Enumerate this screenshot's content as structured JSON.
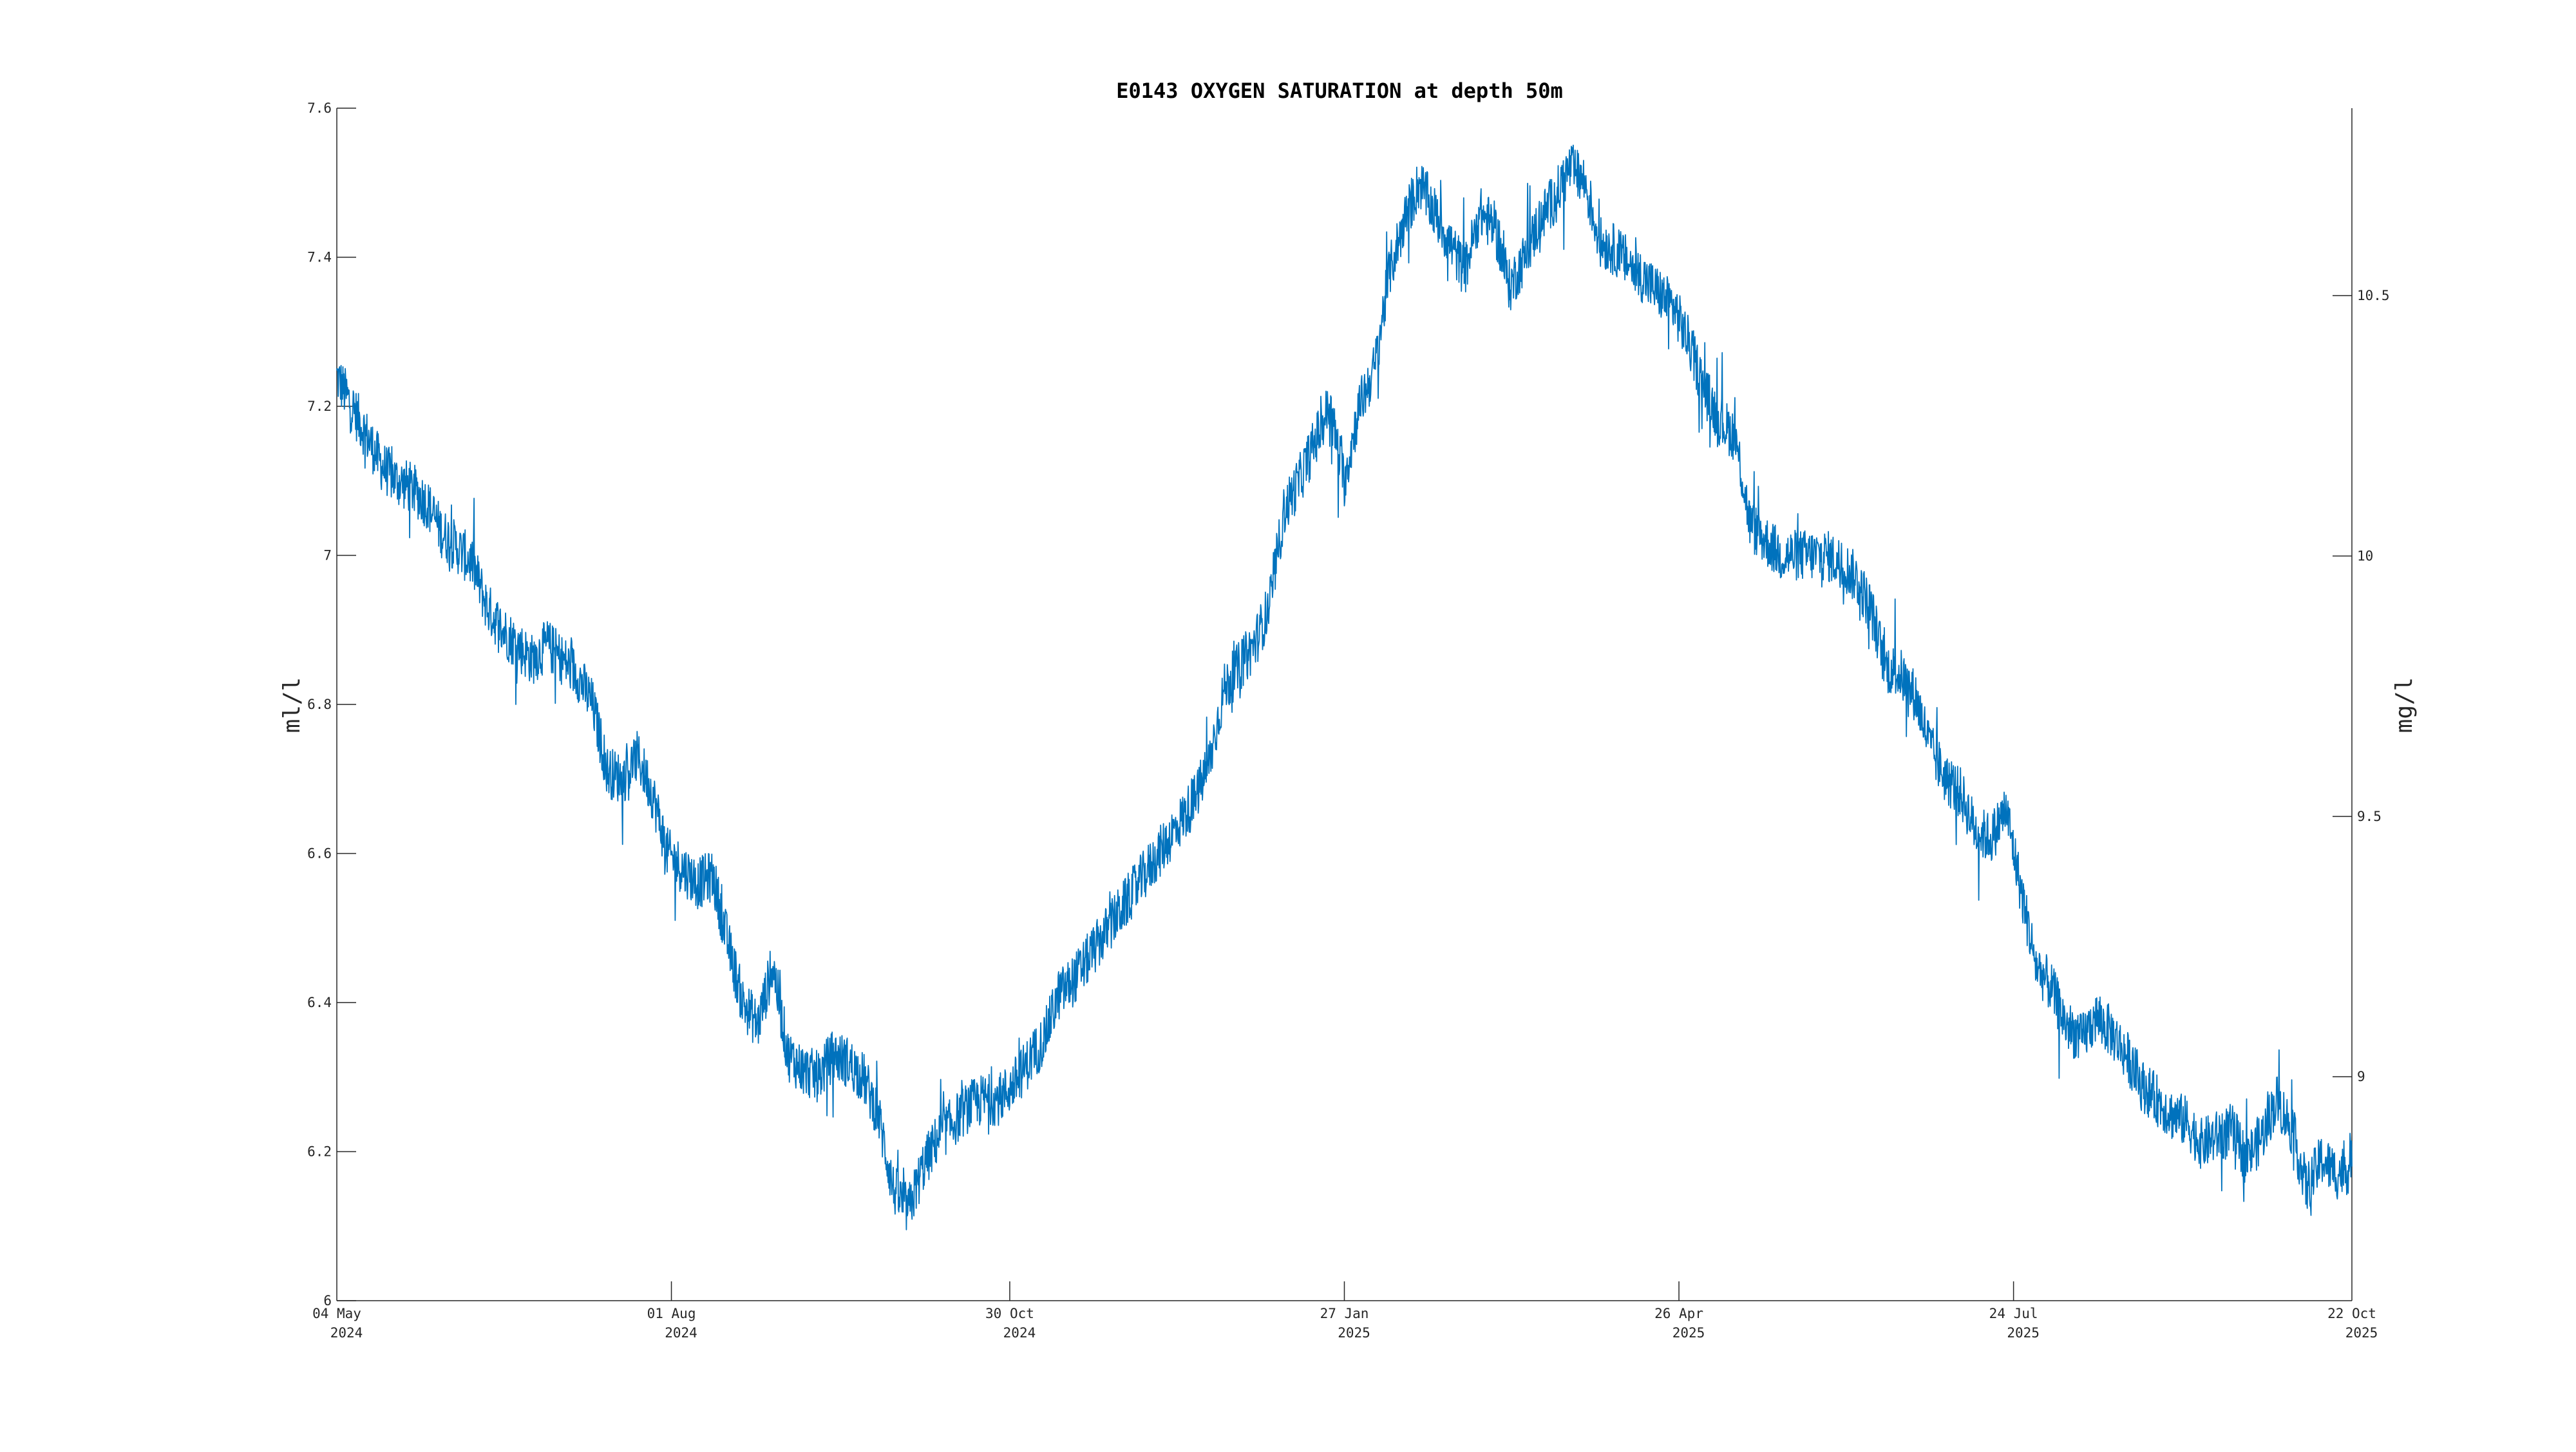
{
  "chart_data": {
    "type": "line",
    "title": "E0143 OXYGEN SATURATION at depth 50m",
    "ylabel_left": "ml/l",
    "ylabel_right": "mg/l",
    "xlim": [
      "2024-05-04",
      "2025-10-22"
    ],
    "ylim_left": [
      6.0,
      7.6
    ],
    "ylim_right": [
      8.57,
      10.86
    ],
    "x_ticks": [
      {
        "date": "2024-05-04",
        "line1": "04 May",
        "line2": "2024"
      },
      {
        "date": "2024-08-01",
        "line1": "01 Aug",
        "line2": "2024"
      },
      {
        "date": "2024-10-30",
        "line1": "30 Oct",
        "line2": "2024"
      },
      {
        "date": "2025-01-27",
        "line1": "27 Jan",
        "line2": "2025"
      },
      {
        "date": "2025-04-26",
        "line1": "26 Apr",
        "line2": "2025"
      },
      {
        "date": "2025-07-24",
        "line1": "24 Jul",
        "line2": "2025"
      },
      {
        "date": "2025-10-22",
        "line1": "22 Oct",
        "line2": "2025"
      }
    ],
    "y_ticks_left": [
      "6",
      "6.2",
      "6.4",
      "6.6",
      "6.8",
      "7",
      "7.2",
      "7.4",
      "7.6"
    ],
    "y_ticks_right": [
      "9",
      "9.5",
      "10",
      "10.5"
    ],
    "grid": false,
    "line_color": "#0072BD",
    "series": [
      {
        "x": [
          "2024-05-04",
          "2024-05-08",
          "2024-05-12",
          "2024-05-16",
          "2024-05-20",
          "2024-05-24",
          "2024-05-28",
          "2024-06-01",
          "2024-06-05",
          "2024-06-09",
          "2024-06-13",
          "2024-06-17",
          "2024-06-21",
          "2024-06-25",
          "2024-06-29",
          "2024-07-03",
          "2024-07-07",
          "2024-07-11",
          "2024-07-15",
          "2024-07-19",
          "2024-07-23",
          "2024-07-27",
          "2024-07-31",
          "2024-08-04",
          "2024-08-08",
          "2024-08-12",
          "2024-08-16",
          "2024-08-20",
          "2024-08-24",
          "2024-08-28",
          "2024-09-01",
          "2024-09-05",
          "2024-09-09",
          "2024-09-13",
          "2024-09-17",
          "2024-09-21",
          "2024-09-25",
          "2024-09-29",
          "2024-10-03",
          "2024-10-07",
          "2024-10-11",
          "2024-10-15",
          "2024-10-19",
          "2024-10-23",
          "2024-10-27",
          "2024-10-31",
          "2024-11-04",
          "2024-11-08",
          "2024-11-12",
          "2024-11-16",
          "2024-11-20",
          "2024-11-24",
          "2024-11-28",
          "2024-12-02",
          "2024-12-06",
          "2024-12-10",
          "2024-12-14",
          "2024-12-18",
          "2024-12-22",
          "2024-12-26",
          "2024-12-30",
          "2025-01-03",
          "2025-01-07",
          "2025-01-11",
          "2025-01-15",
          "2025-01-19",
          "2025-01-23",
          "2025-01-27",
          "2025-01-31",
          "2025-02-04",
          "2025-02-08",
          "2025-02-12",
          "2025-02-16",
          "2025-02-20",
          "2025-02-24",
          "2025-02-28",
          "2025-03-04",
          "2025-03-08",
          "2025-03-12",
          "2025-03-16",
          "2025-03-20",
          "2025-03-24",
          "2025-03-28",
          "2025-04-01",
          "2025-04-05",
          "2025-04-09",
          "2025-04-13",
          "2025-04-17",
          "2025-04-21",
          "2025-04-25",
          "2025-04-29",
          "2025-05-03",
          "2025-05-07",
          "2025-05-11",
          "2025-05-15",
          "2025-05-19",
          "2025-05-23",
          "2025-05-27",
          "2025-05-31",
          "2025-06-04",
          "2025-06-08",
          "2025-06-12",
          "2025-06-16",
          "2025-06-20",
          "2025-06-24",
          "2025-06-28",
          "2025-07-02",
          "2025-07-06",
          "2025-07-10",
          "2025-07-14",
          "2025-07-18",
          "2025-07-22",
          "2025-07-26",
          "2025-07-30",
          "2025-08-03",
          "2025-08-07",
          "2025-08-11",
          "2025-08-15",
          "2025-08-19",
          "2025-08-23",
          "2025-08-27",
          "2025-08-31",
          "2025-09-04",
          "2025-09-08",
          "2025-09-12",
          "2025-09-16",
          "2025-09-20",
          "2025-09-24",
          "2025-09-28",
          "2025-10-02",
          "2025-10-06",
          "2025-10-10",
          "2025-10-14",
          "2025-10-18",
          "2025-10-22"
        ],
        "y": [
          7.24,
          7.2,
          7.16,
          7.12,
          7.1,
          7.09,
          7.07,
          7.03,
          7.01,
          6.99,
          6.93,
          6.9,
          6.88,
          6.86,
          6.88,
          6.86,
          6.84,
          6.8,
          6.71,
          6.7,
          6.73,
          6.68,
          6.6,
          6.58,
          6.56,
          6.57,
          6.48,
          6.4,
          6.37,
          6.45,
          6.33,
          6.31,
          6.3,
          6.33,
          6.32,
          6.3,
          6.25,
          6.15,
          6.12,
          6.18,
          6.22,
          6.24,
          6.26,
          6.27,
          6.27,
          6.29,
          6.32,
          6.35,
          6.41,
          6.43,
          6.46,
          6.49,
          6.52,
          6.55,
          6.58,
          6.61,
          6.64,
          6.67,
          6.72,
          6.82,
          6.85,
          6.88,
          6.93,
          7.06,
          7.1,
          7.15,
          7.2,
          7.1,
          7.2,
          7.25,
          7.38,
          7.45,
          7.5,
          7.46,
          7.42,
          7.38,
          7.46,
          7.44,
          7.36,
          7.4,
          7.45,
          7.48,
          7.52,
          7.5,
          7.42,
          7.41,
          7.39,
          7.37,
          7.35,
          7.33,
          7.28,
          7.22,
          7.18,
          7.16,
          7.04,
          7.02,
          7.0,
          7.0,
          7.0,
          7.0,
          6.99,
          6.97,
          6.93,
          6.85,
          6.84,
          6.81,
          6.74,
          6.7,
          6.68,
          6.63,
          6.62,
          6.66,
          6.55,
          6.45,
          6.42,
          6.37,
          6.35,
          6.38,
          6.36,
          6.33,
          6.29,
          6.27,
          6.25,
          6.24,
          6.21,
          6.22,
          6.23,
          6.19,
          6.22,
          6.27,
          6.23,
          6.15,
          6.19,
          6.17,
          6.18
        ]
      }
    ]
  }
}
